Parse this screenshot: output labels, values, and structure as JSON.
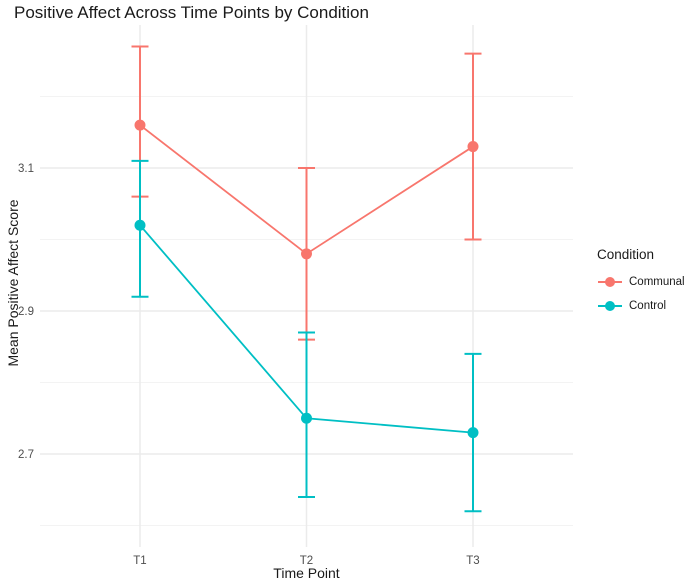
{
  "chart_data": {
    "type": "line",
    "title": "Positive Affect Across Time Points by Condition",
    "xlabel": "Time Point",
    "ylabel": "Mean Positive Affect Score",
    "categories": [
      "T1",
      "T2",
      "T3"
    ],
    "series": [
      {
        "name": "Communal",
        "color": "#F8766D",
        "values": [
          3.16,
          2.98,
          3.13
        ],
        "error_low": [
          3.06,
          2.86,
          3.0
        ],
        "error_high": [
          3.27,
          3.1,
          3.26
        ]
      },
      {
        "name": "Control",
        "color": "#00BFC4",
        "values": [
          3.02,
          2.75,
          2.73
        ],
        "error_low": [
          2.92,
          2.64,
          2.62
        ],
        "error_high": [
          3.11,
          2.87,
          2.84
        ]
      }
    ],
    "y_ticks": [
      2.7,
      2.9,
      3.1
    ],
    "y_minor_gridlines": [
      2.6,
      2.8,
      3.0,
      3.2
    ],
    "ylim": [
      2.57,
      3.3
    ],
    "grid": true,
    "legend_title": "Condition",
    "legend_position": "right",
    "colors": {
      "grid_major": "#ebebeb",
      "grid_minor": "#f3f3f3",
      "tick_text": "#4d4d4d"
    }
  }
}
